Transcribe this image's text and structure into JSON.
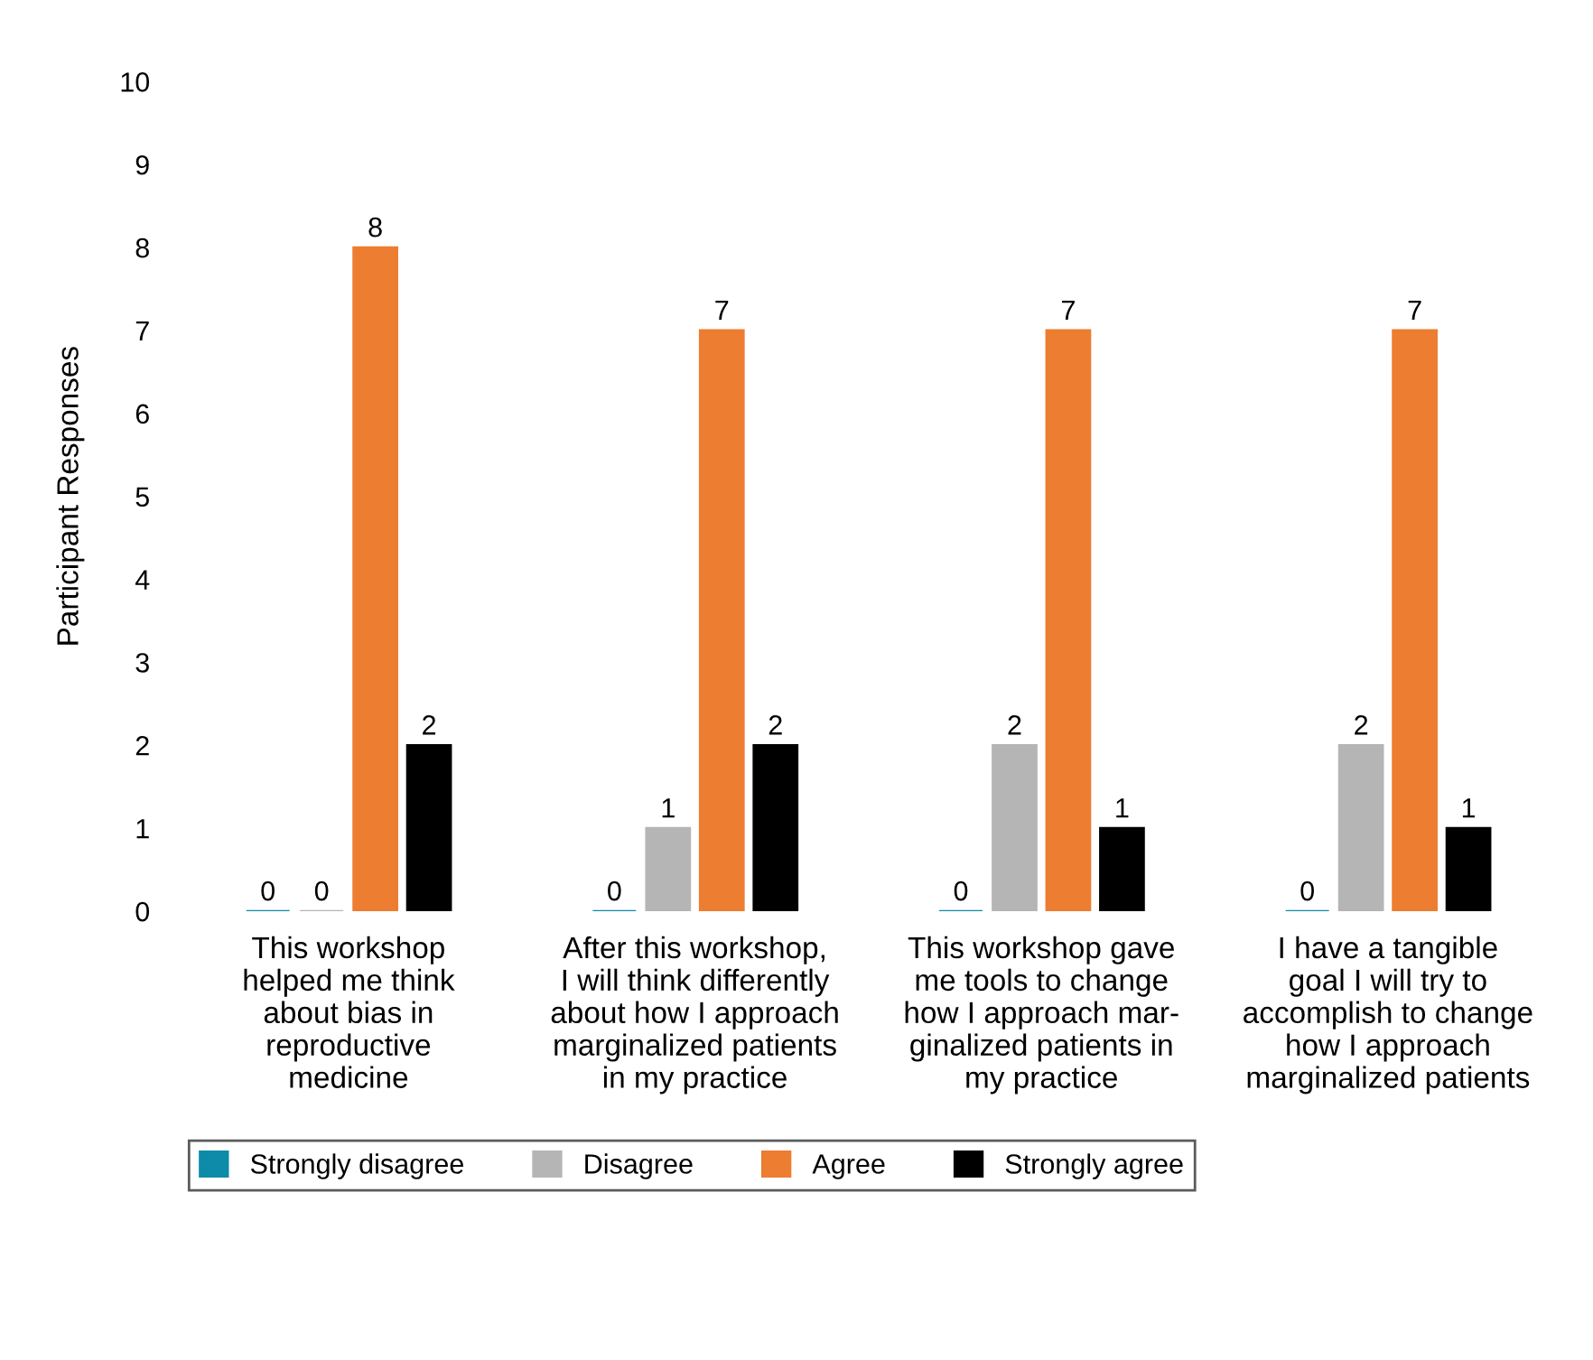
{
  "chart_data": {
    "type": "bar",
    "ylabel": "Participant Responses",
    "categories": [
      "This workshop\nhelped me think\nabout bias in\nreproductive\nmedicine",
      "After this workshop,\nI will think differently\nabout how I approach\nmarginalized patients\nin my practice",
      "This workshop gave\nme tools to change\nhow I approach mar-\nginalized patients in\nmy practice",
      "I have a tangible\ngoal I will try to\naccomplish to change\nhow I approach\nmarginalized patients"
    ],
    "series": [
      {
        "name": "Strongly disagree",
        "color": "#0e8ba8",
        "values": [
          0,
          0,
          0,
          0
        ]
      },
      {
        "name": "Disagree",
        "color": "#b5b5b5",
        "values": [
          0,
          1,
          2,
          2
        ]
      },
      {
        "name": "Agree",
        "color": "#ed7d31",
        "values": [
          8,
          7,
          7,
          7
        ]
      },
      {
        "name": "Strongly agree",
        "color": "#000000",
        "values": [
          2,
          2,
          1,
          1
        ]
      }
    ],
    "ylim": [
      0,
      10
    ],
    "yticks": [
      0,
      1,
      2,
      3,
      4,
      5,
      6,
      7,
      8,
      9,
      10
    ],
    "data_labels": true,
    "grid": false,
    "legend": "bottom"
  }
}
